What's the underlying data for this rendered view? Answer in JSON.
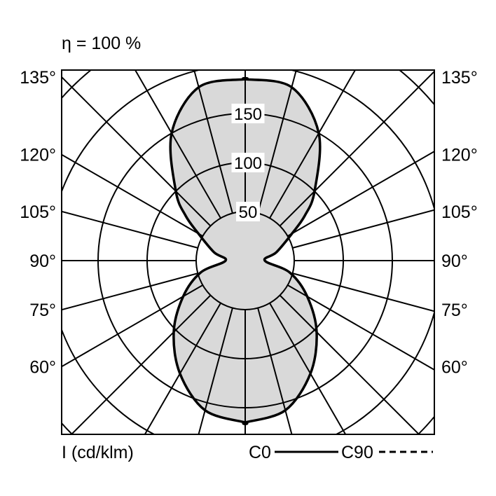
{
  "chart_data": {
    "type": "polar",
    "title": "η = 100 %",
    "unit_label": "I (cd/klm)",
    "rings": [
      50,
      100,
      150,
      200,
      250
    ],
    "ring_labels": [
      "50",
      "100",
      "150"
    ],
    "angle_step_deg": 15,
    "angle_labels_left": [
      "135°",
      "120°",
      "105°",
      "90°",
      "75°",
      "60°"
    ],
    "angle_labels_right": [
      "135°",
      "120°",
      "105°",
      "90°",
      "75°",
      "60°"
    ],
    "angle_label_values": [
      135,
      120,
      105,
      90,
      75,
      60
    ],
    "legend": {
      "c0": "C0",
      "c90": "C90",
      "placement": "bottom-right"
    },
    "series": [
      {
        "name": "C0",
        "style": "solid",
        "angles_deg": [
          0,
          15,
          30,
          45,
          60,
          75,
          90,
          105,
          120,
          127,
          135,
          150,
          165,
          180
        ],
        "values": [
          165,
          158,
          133,
          103,
          73,
          47,
          20,
          33,
          55,
          76,
          100,
          150,
          183,
          185
        ]
      }
    ],
    "fill_color": "#d9d9d9",
    "line_color": "#000000",
    "grid": true
  }
}
